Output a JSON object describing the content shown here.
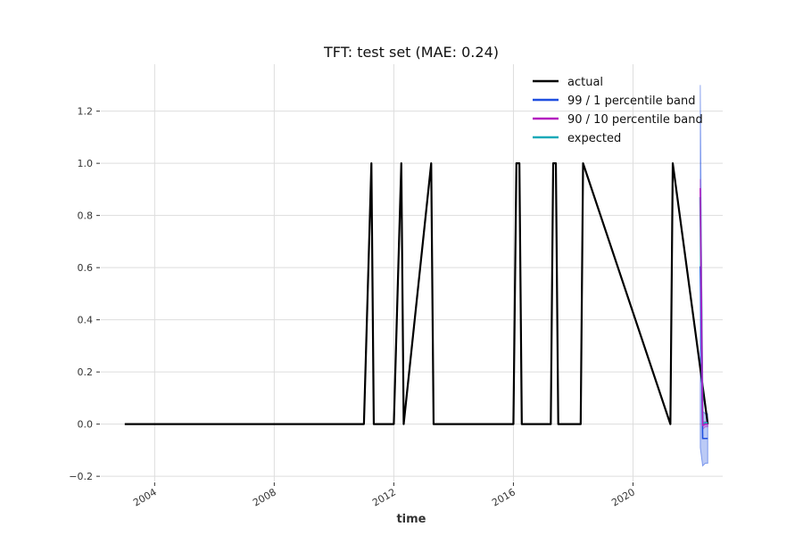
{
  "chart_data": {
    "type": "line",
    "title": "TFT: test set (MAE: 0.24)",
    "xlabel": "time",
    "ylabel": "",
    "xlim": [
      2002.2,
      2023.0
    ],
    "ylim": [
      -0.22,
      1.38
    ],
    "x_ticks": [
      {
        "value": 2004,
        "label": "2004"
      },
      {
        "value": 2008,
        "label": "2008"
      },
      {
        "value": 2012,
        "label": "2012"
      },
      {
        "value": 2016,
        "label": "2016"
      },
      {
        "value": 2020,
        "label": "2020"
      }
    ],
    "y_ticks": [
      {
        "value": -0.2,
        "label": "−0.2"
      },
      {
        "value": 0.0,
        "label": "0.0"
      },
      {
        "value": 0.2,
        "label": "0.2"
      },
      {
        "value": 0.4,
        "label": "0.4"
      },
      {
        "value": 0.6,
        "label": "0.6"
      },
      {
        "value": 0.8,
        "label": "0.8"
      },
      {
        "value": 1.0,
        "label": "1.0"
      },
      {
        "value": 1.2,
        "label": "1.2"
      }
    ],
    "grid": true,
    "legend_position": "top-right",
    "series": [
      {
        "name": "actual",
        "color": "#000000",
        "x": [
          2003.0,
          2011.0,
          2011.25,
          2011.33,
          2012.0,
          2012.25,
          2012.33,
          2013.25,
          2013.33,
          2016.0,
          2016.1,
          2016.2,
          2016.28,
          2017.25,
          2017.33,
          2017.42,
          2017.5,
          2018.25,
          2018.33,
          2021.25,
          2021.33,
          2022.5
        ],
        "y": [
          0,
          0,
          1,
          0,
          0,
          1,
          0,
          1,
          0,
          0,
          1,
          1,
          0,
          0,
          1,
          1,
          0,
          0,
          1,
          0,
          1,
          0
        ]
      },
      {
        "name": "99 / 1 percentile band",
        "color": "#1f4fe0",
        "band": true,
        "x": [
          2022.25,
          2022.33,
          2022.42,
          2022.5
        ],
        "upper": [
          1.3,
          0.05,
          0.04,
          0.04
        ],
        "lower": [
          -0.09,
          -0.16,
          -0.15,
          -0.15
        ]
      },
      {
        "name": "90 / 10 percentile band",
        "color": "#b41fc0",
        "band": true,
        "x": [
          2022.25,
          2022.33,
          2022.42,
          2022.5
        ],
        "upper": [
          0.94,
          0.01,
          0.01,
          0.01
        ],
        "lower": [
          0.87,
          -0.02,
          -0.01,
          -0.01
        ]
      },
      {
        "name": "expected",
        "color": "#1aa9b8",
        "x": [
          2022.25,
          2022.33,
          2022.42,
          2022.5
        ],
        "y": [
          0.87,
          0.0,
          0.005,
          0.005
        ]
      }
    ]
  }
}
